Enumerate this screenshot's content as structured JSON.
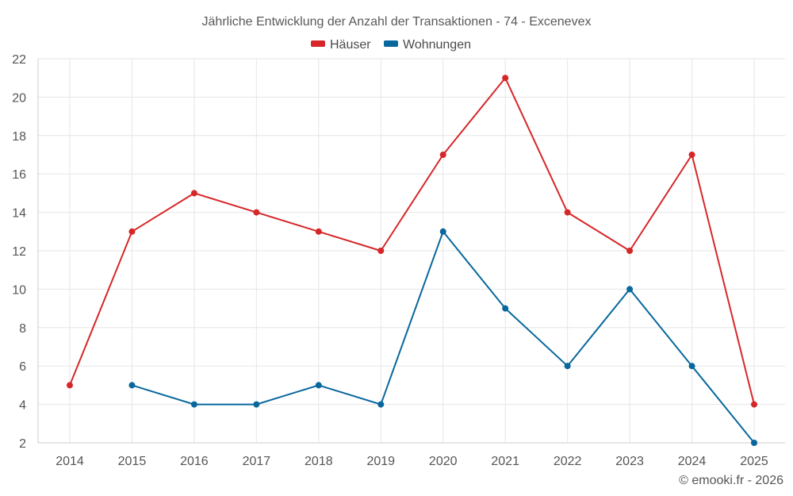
{
  "chart_data": {
    "type": "line",
    "title": "Jährliche Entwicklung der Anzahl der Transaktionen - 74 - Excenevex",
    "categories": [
      "2014",
      "2015",
      "2016",
      "2017",
      "2018",
      "2019",
      "2020",
      "2021",
      "2022",
      "2023",
      "2024",
      "2025"
    ],
    "ylim": [
      2,
      22
    ],
    "yticks": [
      2,
      4,
      6,
      8,
      10,
      12,
      14,
      16,
      18,
      20,
      22
    ],
    "grid": true,
    "legend_position": "top-center",
    "series": [
      {
        "name": "Häuser",
        "color": "#d62728",
        "values": [
          5,
          13,
          15,
          14,
          13,
          12,
          17,
          21,
          14,
          12,
          17,
          4
        ]
      },
      {
        "name": "Wohnungen",
        "color": "#08679d",
        "values": [
          null,
          5,
          4,
          4,
          5,
          4,
          13,
          9,
          6,
          10,
          6,
          2
        ]
      }
    ],
    "credit": "© emooki.fr - 2026"
  }
}
